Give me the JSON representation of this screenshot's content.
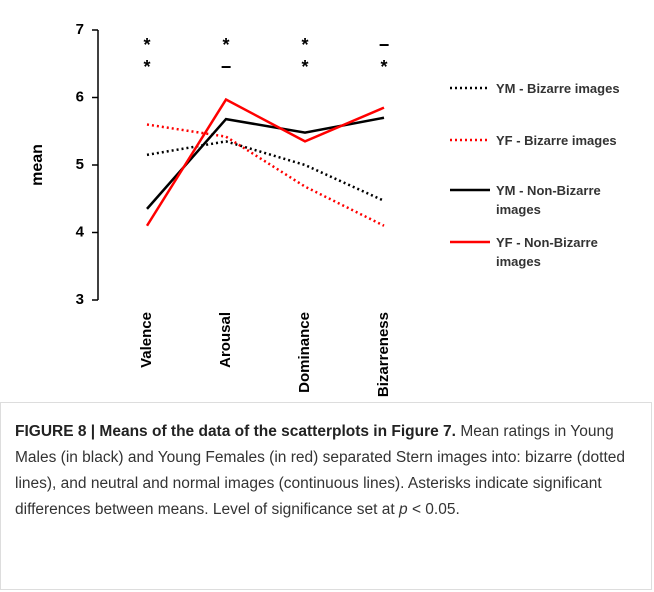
{
  "chart_data": {
    "type": "line",
    "ylabel": "mean",
    "categories": [
      "Valence",
      "Arousal",
      "Dominance",
      "Bizarreness"
    ],
    "ylim": [
      3,
      7
    ],
    "yticks": [
      3,
      4,
      5,
      6,
      7
    ],
    "significance_markers": [
      [
        "*",
        "*"
      ],
      [
        "*",
        "−"
      ],
      [
        "*",
        "*"
      ],
      [
        "−",
        "*"
      ]
    ],
    "series": [
      {
        "name": "YM - Bizarre images",
        "color": "#000000",
        "linestyle": "dotted",
        "values": [
          5.15,
          5.35,
          5.0,
          4.47
        ]
      },
      {
        "name": "YF - Bizarre images",
        "color": "#ff0000",
        "linestyle": "dotted",
        "values": [
          5.6,
          5.42,
          4.68,
          4.1
        ]
      },
      {
        "name": "YM - Non-Bizarre images",
        "color": "#000000",
        "linestyle": "solid",
        "values": [
          4.35,
          5.68,
          5.48,
          5.7
        ]
      },
      {
        "name": "YF - Non-Bizarre images",
        "color": "#ff0000",
        "linestyle": "solid",
        "values": [
          4.1,
          5.97,
          5.35,
          5.85
        ]
      }
    ]
  },
  "caption": {
    "label": "FIGURE 8 | Means of the data of the scatterplots in Figure 7.",
    "text": "Mean ratings in Young Males (in black) and Young Females (in red) separated Stern images into: bizarre (dotted lines), and neutral and normal images (continuous lines). Asterisks indicate significant differences between means. Level of significance set at",
    "p_symbol": "p",
    "threshold": "< 0.05."
  }
}
